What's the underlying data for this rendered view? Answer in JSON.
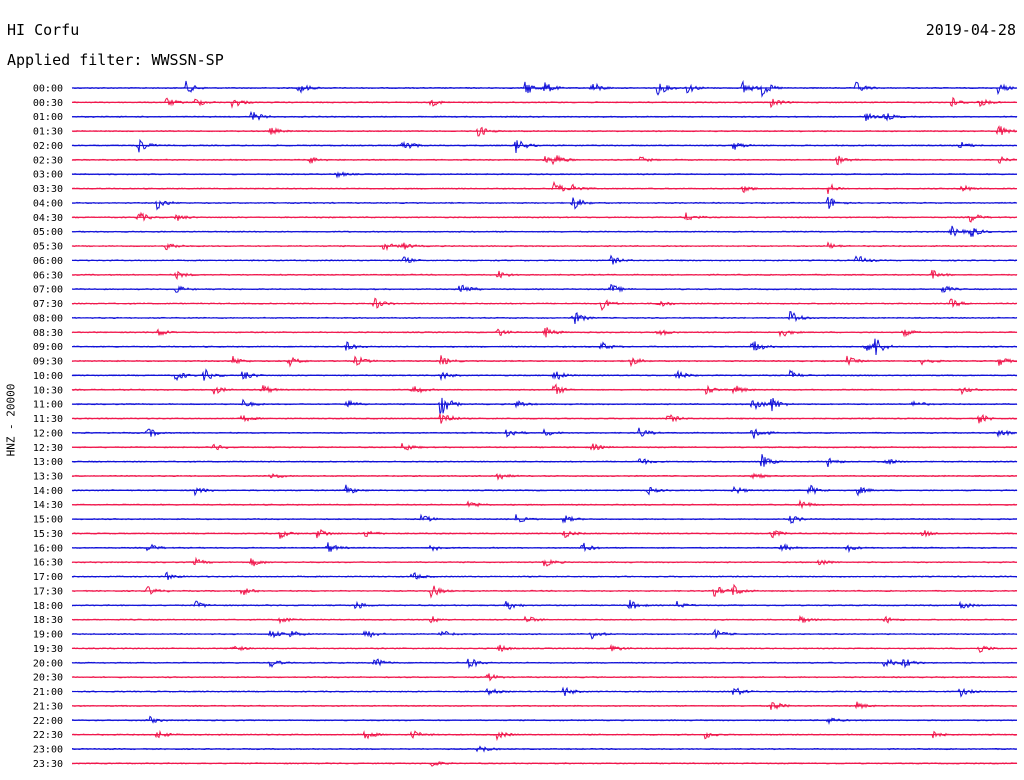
{
  "header": {
    "station": "HI Corfu",
    "date": "2019-04-28",
    "filter": "Applied filter: WWSSN-SP"
  },
  "axis": {
    "channel_label": "HNZ - 20000"
  },
  "colors": {
    "trace_even": "#1010d8",
    "trace_odd": "#f0174c",
    "background": "#ffffff",
    "text": "#000000"
  },
  "rows": [
    {
      "time": "00:00",
      "events": [
        {
          "t": 0.12,
          "a": 1.8
        },
        {
          "t": 0.24,
          "a": 1.6
        },
        {
          "t": 0.48,
          "a": 2.0
        },
        {
          "t": 0.5,
          "a": 1.6
        },
        {
          "t": 0.55,
          "a": 1.7
        },
        {
          "t": 0.62,
          "a": 2.0
        },
        {
          "t": 0.65,
          "a": 1.5
        },
        {
          "t": 0.71,
          "a": 2.0
        },
        {
          "t": 0.73,
          "a": 2.2
        },
        {
          "t": 0.83,
          "a": 1.6
        },
        {
          "t": 0.98,
          "a": 1.4
        }
      ]
    },
    {
      "time": "00:30",
      "events": [
        {
          "t": 0.1,
          "a": 1.2
        },
        {
          "t": 0.13,
          "a": 1.3
        },
        {
          "t": 0.17,
          "a": 1.6
        },
        {
          "t": 0.38,
          "a": 1.0
        },
        {
          "t": 0.74,
          "a": 1.3
        },
        {
          "t": 0.93,
          "a": 1.5
        },
        {
          "t": 0.96,
          "a": 1.2
        }
      ]
    },
    {
      "time": "01:00",
      "events": [
        {
          "t": 0.19,
          "a": 1.6
        },
        {
          "t": 0.84,
          "a": 1.0
        },
        {
          "t": 0.86,
          "a": 1.2
        }
      ]
    },
    {
      "time": "01:30",
      "events": [
        {
          "t": 0.21,
          "a": 0.9
        },
        {
          "t": 0.43,
          "a": 1.5
        },
        {
          "t": 0.98,
          "a": 1.6
        }
      ]
    },
    {
      "time": "02:00",
      "events": [
        {
          "t": 0.07,
          "a": 2.2
        },
        {
          "t": 0.35,
          "a": 2.0
        },
        {
          "t": 0.47,
          "a": 2.0
        },
        {
          "t": 0.7,
          "a": 1.2
        },
        {
          "t": 0.94,
          "a": 1.0
        }
      ]
    },
    {
      "time": "02:30",
      "events": [
        {
          "t": 0.25,
          "a": 1.2
        },
        {
          "t": 0.5,
          "a": 1.0
        },
        {
          "t": 0.51,
          "a": 1.6
        },
        {
          "t": 0.6,
          "a": 1.0
        },
        {
          "t": 0.81,
          "a": 1.2
        },
        {
          "t": 0.98,
          "a": 1.0
        }
      ]
    },
    {
      "time": "03:00",
      "events": [
        {
          "t": 0.28,
          "a": 0.8
        }
      ]
    },
    {
      "time": "03:30",
      "events": [
        {
          "t": 0.51,
          "a": 1.8
        },
        {
          "t": 0.53,
          "a": 1.2
        },
        {
          "t": 0.71,
          "a": 1.0
        },
        {
          "t": 0.8,
          "a": 1.4
        },
        {
          "t": 0.94,
          "a": 1.2
        }
      ]
    },
    {
      "time": "04:00",
      "events": [
        {
          "t": 0.09,
          "a": 1.6
        },
        {
          "t": 0.53,
          "a": 2.0
        },
        {
          "t": 0.8,
          "a": 1.8
        }
      ]
    },
    {
      "time": "04:30",
      "events": [
        {
          "t": 0.07,
          "a": 1.5
        },
        {
          "t": 0.11,
          "a": 1.0
        },
        {
          "t": 0.65,
          "a": 1.2
        },
        {
          "t": 0.95,
          "a": 1.4
        }
      ]
    },
    {
      "time": "05:00",
      "events": [
        {
          "t": 0.93,
          "a": 1.6
        },
        {
          "t": 0.95,
          "a": 1.8
        }
      ]
    },
    {
      "time": "05:30",
      "events": [
        {
          "t": 0.1,
          "a": 1.2
        },
        {
          "t": 0.33,
          "a": 1.2
        },
        {
          "t": 0.35,
          "a": 1.0
        },
        {
          "t": 0.8,
          "a": 0.8
        }
      ]
    },
    {
      "time": "06:00",
      "events": [
        {
          "t": 0.35,
          "a": 1.0
        },
        {
          "t": 0.57,
          "a": 1.2
        },
        {
          "t": 0.83,
          "a": 1.6
        }
      ]
    },
    {
      "time": "06:30",
      "events": [
        {
          "t": 0.11,
          "a": 1.0
        },
        {
          "t": 0.45,
          "a": 1.2
        },
        {
          "t": 0.91,
          "a": 1.2
        }
      ]
    },
    {
      "time": "07:00",
      "events": [
        {
          "t": 0.11,
          "a": 1.0
        },
        {
          "t": 0.41,
          "a": 2.0
        },
        {
          "t": 0.57,
          "a": 1.4
        },
        {
          "t": 0.92,
          "a": 1.2
        }
      ]
    },
    {
      "time": "07:30",
      "events": [
        {
          "t": 0.32,
          "a": 1.6
        },
        {
          "t": 0.56,
          "a": 1.6
        },
        {
          "t": 0.62,
          "a": 1.2
        },
        {
          "t": 0.93,
          "a": 1.2
        }
      ]
    },
    {
      "time": "08:00",
      "events": [
        {
          "t": 0.53,
          "a": 2.0
        },
        {
          "t": 0.76,
          "a": 2.2
        }
      ]
    },
    {
      "time": "08:30",
      "events": [
        {
          "t": 0.09,
          "a": 1.2
        },
        {
          "t": 0.45,
          "a": 1.2
        },
        {
          "t": 0.5,
          "a": 1.6
        },
        {
          "t": 0.62,
          "a": 1.2
        },
        {
          "t": 0.75,
          "a": 1.4
        },
        {
          "t": 0.88,
          "a": 1.0
        }
      ]
    },
    {
      "time": "09:00",
      "events": [
        {
          "t": 0.29,
          "a": 1.2
        },
        {
          "t": 0.56,
          "a": 1.2
        },
        {
          "t": 0.72,
          "a": 2.0
        },
        {
          "t": 0.84,
          "a": 2.0
        },
        {
          "t": 0.85,
          "a": 2.4
        }
      ]
    },
    {
      "time": "09:30",
      "events": [
        {
          "t": 0.17,
          "a": 1.2
        },
        {
          "t": 0.23,
          "a": 1.2
        },
        {
          "t": 0.3,
          "a": 1.4
        },
        {
          "t": 0.39,
          "a": 1.4
        },
        {
          "t": 0.59,
          "a": 1.4
        },
        {
          "t": 0.82,
          "a": 1.2
        },
        {
          "t": 0.9,
          "a": 1.2
        },
        {
          "t": 0.98,
          "a": 1.4
        }
      ]
    },
    {
      "time": "10:00",
      "events": [
        {
          "t": 0.11,
          "a": 1.4
        },
        {
          "t": 0.14,
          "a": 1.6
        },
        {
          "t": 0.18,
          "a": 1.6
        },
        {
          "t": 0.39,
          "a": 1.2
        },
        {
          "t": 0.51,
          "a": 1.6
        },
        {
          "t": 0.64,
          "a": 1.4
        },
        {
          "t": 0.76,
          "a": 1.2
        }
      ]
    },
    {
      "time": "10:30",
      "events": [
        {
          "t": 0.15,
          "a": 1.2
        },
        {
          "t": 0.2,
          "a": 1.6
        },
        {
          "t": 0.36,
          "a": 1.6
        },
        {
          "t": 0.51,
          "a": 1.6
        },
        {
          "t": 0.67,
          "a": 1.4
        },
        {
          "t": 0.7,
          "a": 1.4
        },
        {
          "t": 0.94,
          "a": 1.2
        }
      ]
    },
    {
      "time": "11:00",
      "events": [
        {
          "t": 0.18,
          "a": 1.2
        },
        {
          "t": 0.29,
          "a": 1.2
        },
        {
          "t": 0.39,
          "a": 3.5
        },
        {
          "t": 0.47,
          "a": 1.2
        },
        {
          "t": 0.72,
          "a": 2.4
        },
        {
          "t": 0.74,
          "a": 2.0
        },
        {
          "t": 0.89,
          "a": 1.0
        }
      ]
    },
    {
      "time": "11:30",
      "events": [
        {
          "t": 0.18,
          "a": 1.0
        },
        {
          "t": 0.39,
          "a": 2.5
        },
        {
          "t": 0.63,
          "a": 1.4
        },
        {
          "t": 0.96,
          "a": 1.2
        }
      ]
    },
    {
      "time": "12:00",
      "events": [
        {
          "t": 0.08,
          "a": 1.4
        },
        {
          "t": 0.46,
          "a": 1.6
        },
        {
          "t": 0.5,
          "a": 1.0
        },
        {
          "t": 0.6,
          "a": 1.4
        },
        {
          "t": 0.72,
          "a": 2.4
        },
        {
          "t": 0.98,
          "a": 1.2
        }
      ]
    },
    {
      "time": "12:30",
      "events": [
        {
          "t": 0.15,
          "a": 1.0
        },
        {
          "t": 0.35,
          "a": 1.4
        },
        {
          "t": 0.55,
          "a": 1.0
        }
      ]
    },
    {
      "time": "13:00",
      "events": [
        {
          "t": 0.6,
          "a": 1.2
        },
        {
          "t": 0.73,
          "a": 1.8
        },
        {
          "t": 0.8,
          "a": 1.2
        },
        {
          "t": 0.86,
          "a": 1.2
        }
      ]
    },
    {
      "time": "13:30",
      "events": [
        {
          "t": 0.21,
          "a": 1.0
        },
        {
          "t": 0.45,
          "a": 1.2
        },
        {
          "t": 0.72,
          "a": 1.0
        }
      ]
    },
    {
      "time": "14:00",
      "events": [
        {
          "t": 0.13,
          "a": 1.2
        },
        {
          "t": 0.29,
          "a": 1.4
        },
        {
          "t": 0.61,
          "a": 1.0
        },
        {
          "t": 0.7,
          "a": 1.2
        },
        {
          "t": 0.78,
          "a": 1.4
        },
        {
          "t": 0.83,
          "a": 1.4
        }
      ]
    },
    {
      "time": "14:30",
      "events": [
        {
          "t": 0.42,
          "a": 1.2
        },
        {
          "t": 0.77,
          "a": 1.4
        }
      ]
    },
    {
      "time": "15:00",
      "events": [
        {
          "t": 0.37,
          "a": 1.2
        },
        {
          "t": 0.47,
          "a": 1.2
        },
        {
          "t": 0.52,
          "a": 1.2
        },
        {
          "t": 0.76,
          "a": 1.2
        }
      ]
    },
    {
      "time": "15:30",
      "events": [
        {
          "t": 0.22,
          "a": 1.2
        },
        {
          "t": 0.26,
          "a": 1.6
        },
        {
          "t": 0.31,
          "a": 1.2
        },
        {
          "t": 0.52,
          "a": 1.2
        },
        {
          "t": 0.74,
          "a": 1.2
        },
        {
          "t": 0.9,
          "a": 1.0
        }
      ]
    },
    {
      "time": "16:00",
      "events": [
        {
          "t": 0.08,
          "a": 1.2
        },
        {
          "t": 0.27,
          "a": 1.6
        },
        {
          "t": 0.38,
          "a": 1.2
        },
        {
          "t": 0.54,
          "a": 1.4
        },
        {
          "t": 0.75,
          "a": 1.2
        },
        {
          "t": 0.82,
          "a": 1.0
        }
      ]
    },
    {
      "time": "16:30",
      "events": [
        {
          "t": 0.13,
          "a": 1.0
        },
        {
          "t": 0.19,
          "a": 1.2
        },
        {
          "t": 0.5,
          "a": 1.2
        },
        {
          "t": 0.79,
          "a": 1.0
        }
      ]
    },
    {
      "time": "17:00",
      "events": [
        {
          "t": 0.1,
          "a": 1.0
        },
        {
          "t": 0.36,
          "a": 1.2
        }
      ]
    },
    {
      "time": "17:30",
      "events": [
        {
          "t": 0.08,
          "a": 1.2
        },
        {
          "t": 0.18,
          "a": 1.2
        },
        {
          "t": 0.38,
          "a": 1.8
        },
        {
          "t": 0.68,
          "a": 1.6
        },
        {
          "t": 0.7,
          "a": 1.6
        }
      ]
    },
    {
      "time": "18:00",
      "events": [
        {
          "t": 0.13,
          "a": 1.2
        },
        {
          "t": 0.3,
          "a": 1.2
        },
        {
          "t": 0.46,
          "a": 1.4
        },
        {
          "t": 0.59,
          "a": 1.4
        },
        {
          "t": 0.64,
          "a": 1.0
        },
        {
          "t": 0.94,
          "a": 1.2
        }
      ]
    },
    {
      "time": "18:30",
      "events": [
        {
          "t": 0.22,
          "a": 1.0
        },
        {
          "t": 0.38,
          "a": 1.0
        },
        {
          "t": 0.48,
          "a": 1.2
        },
        {
          "t": 0.77,
          "a": 1.2
        },
        {
          "t": 0.86,
          "a": 1.0
        }
      ]
    },
    {
      "time": "19:00",
      "events": [
        {
          "t": 0.21,
          "a": 1.2
        },
        {
          "t": 0.23,
          "a": 1.2
        },
        {
          "t": 0.31,
          "a": 1.4
        },
        {
          "t": 0.39,
          "a": 1.2
        },
        {
          "t": 0.55,
          "a": 1.2
        },
        {
          "t": 0.68,
          "a": 1.2
        }
      ]
    },
    {
      "time": "19:30",
      "events": [
        {
          "t": 0.17,
          "a": 1.0
        },
        {
          "t": 0.45,
          "a": 1.2
        },
        {
          "t": 0.57,
          "a": 1.2
        },
        {
          "t": 0.96,
          "a": 1.2
        }
      ]
    },
    {
      "time": "20:00",
      "events": [
        {
          "t": 0.21,
          "a": 1.2
        },
        {
          "t": 0.32,
          "a": 1.4
        },
        {
          "t": 0.42,
          "a": 1.6
        },
        {
          "t": 0.86,
          "a": 1.4
        },
        {
          "t": 0.88,
          "a": 1.6
        }
      ]
    },
    {
      "time": "20:30",
      "events": [
        {
          "t": 0.44,
          "a": 1.0
        }
      ]
    },
    {
      "time": "21:00",
      "events": [
        {
          "t": 0.44,
          "a": 1.0
        },
        {
          "t": 0.52,
          "a": 1.4
        },
        {
          "t": 0.7,
          "a": 1.4
        },
        {
          "t": 0.94,
          "a": 1.2
        }
      ]
    },
    {
      "time": "21:30",
      "events": [
        {
          "t": 0.74,
          "a": 1.6
        },
        {
          "t": 0.83,
          "a": 1.0
        }
      ]
    },
    {
      "time": "22:00",
      "events": [
        {
          "t": 0.08,
          "a": 1.2
        },
        {
          "t": 0.8,
          "a": 1.0
        }
      ]
    },
    {
      "time": "22:30",
      "events": [
        {
          "t": 0.09,
          "a": 1.2
        },
        {
          "t": 0.31,
          "a": 1.2
        },
        {
          "t": 0.36,
          "a": 1.2
        },
        {
          "t": 0.45,
          "a": 1.2
        },
        {
          "t": 0.67,
          "a": 1.0
        },
        {
          "t": 0.91,
          "a": 1.0
        }
      ]
    },
    {
      "time": "23:00",
      "events": [
        {
          "t": 0.43,
          "a": 1.2
        }
      ]
    },
    {
      "time": "23:30",
      "events": [
        {
          "t": 0.38,
          "a": 1.0
        }
      ]
    }
  ]
}
